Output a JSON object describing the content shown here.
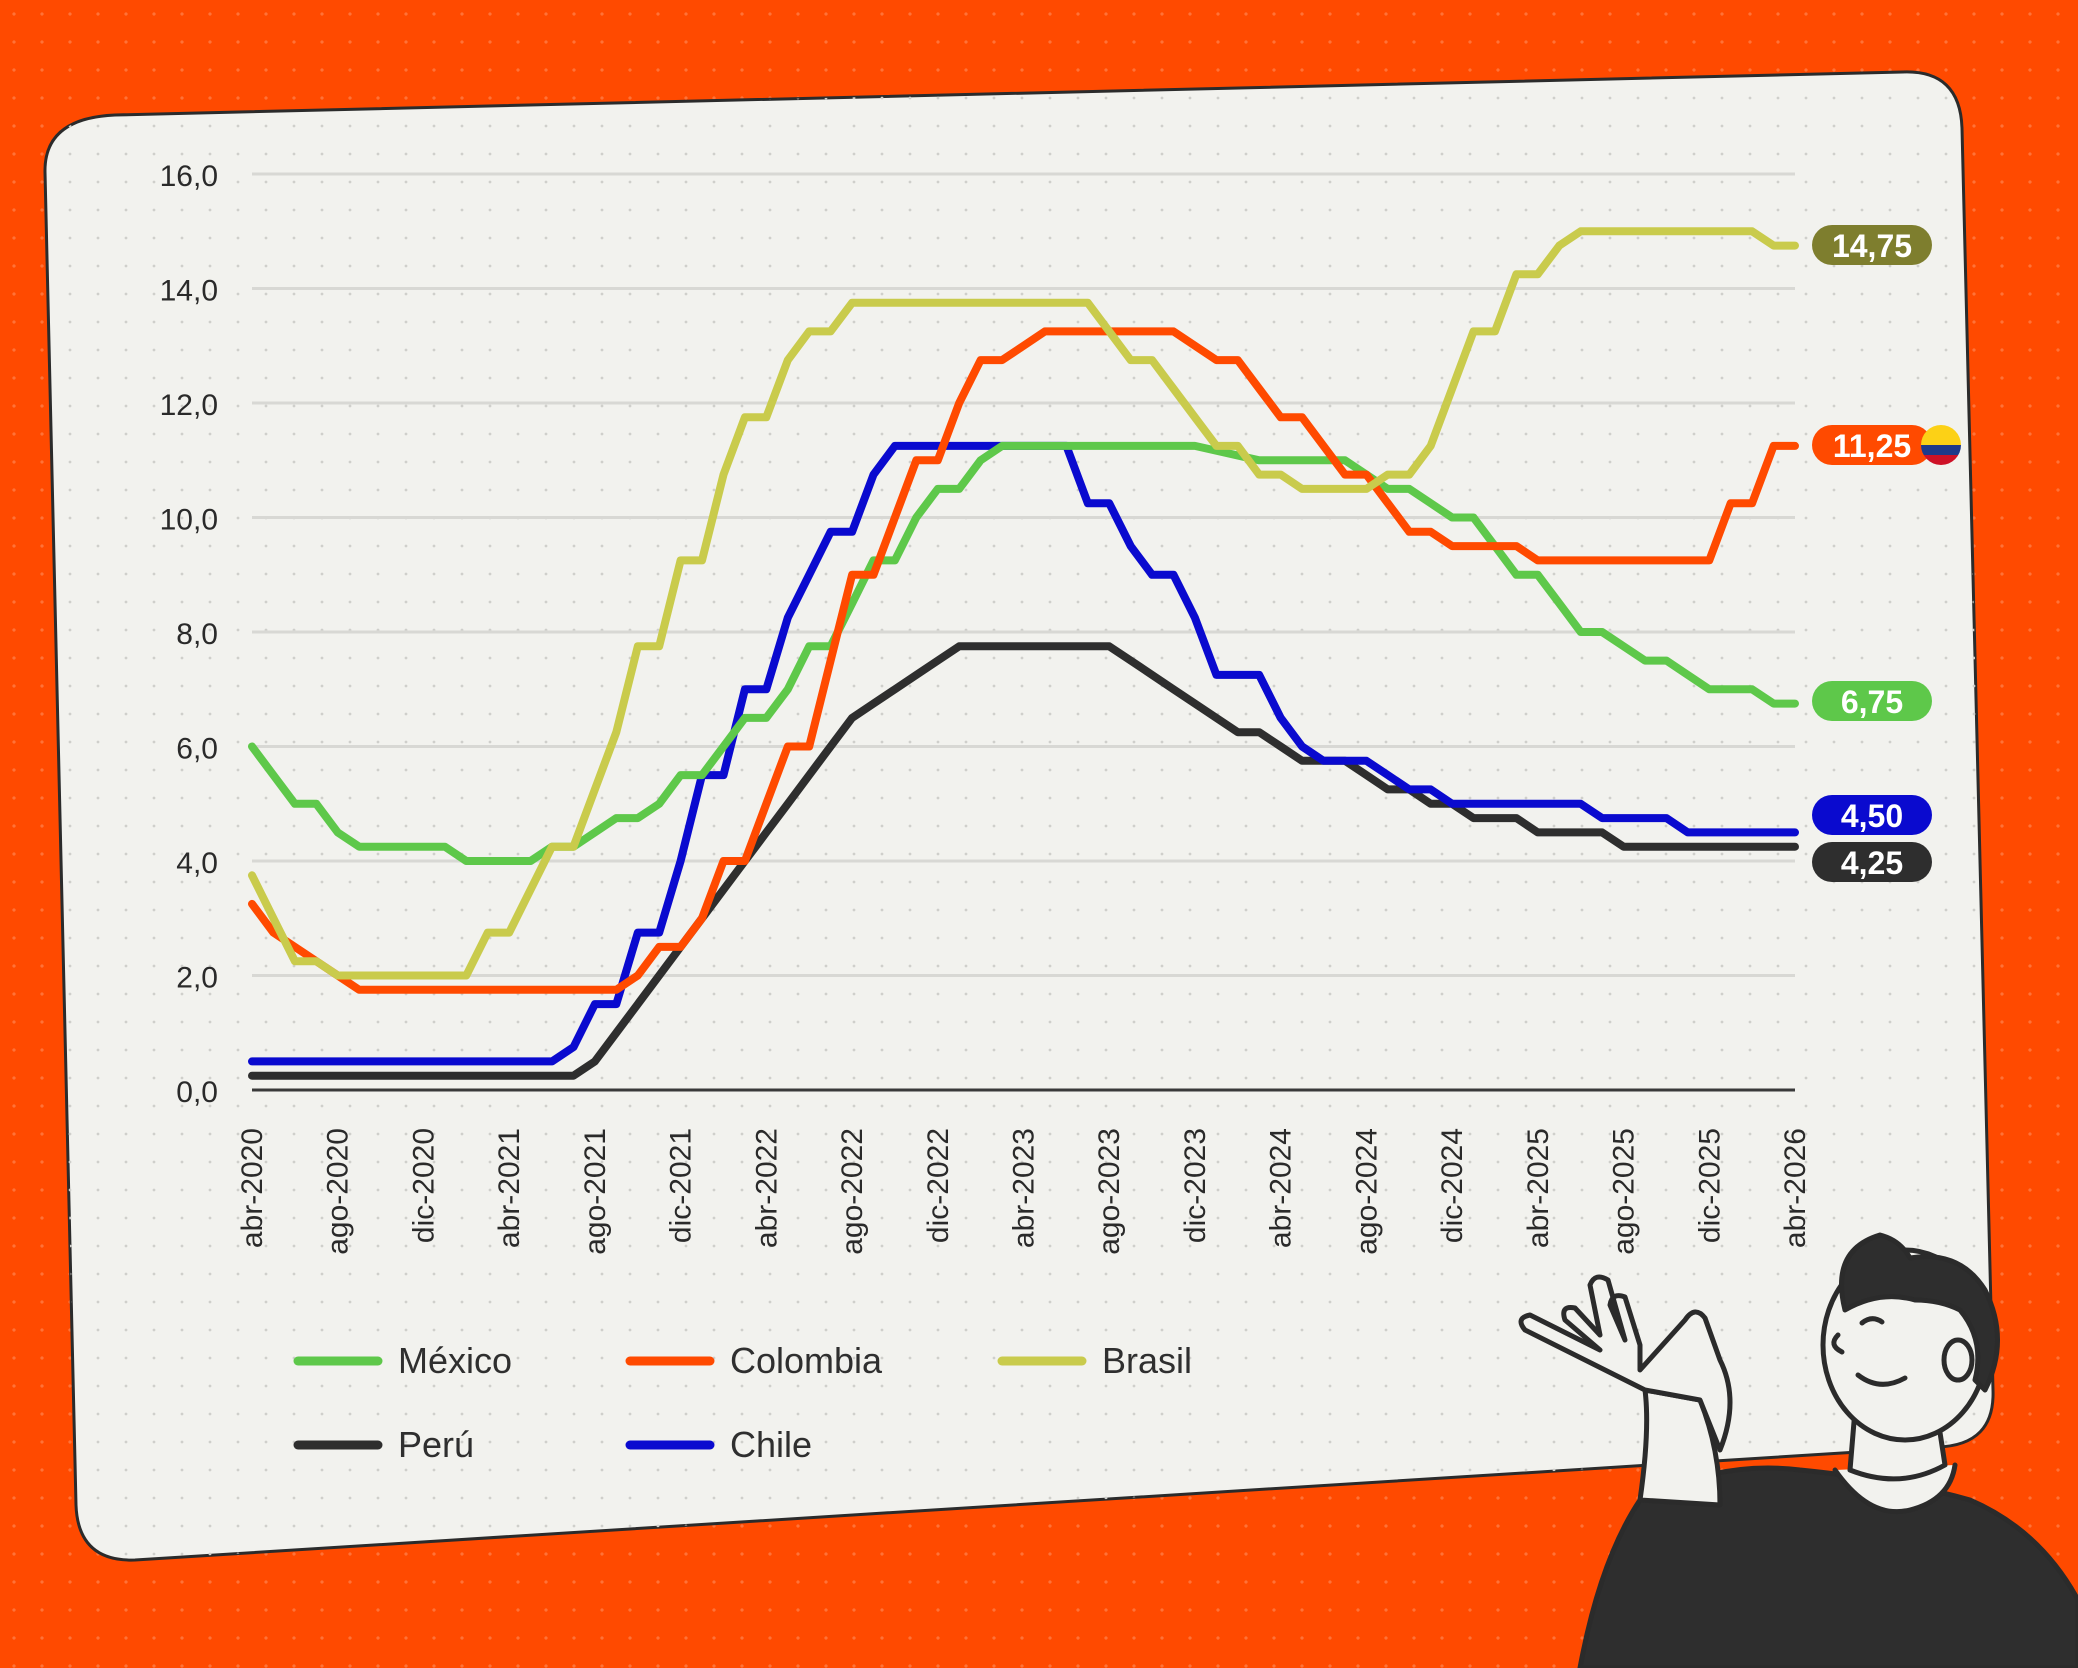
{
  "colors": {
    "background": "#FF4A00",
    "card": "#F2F2EE",
    "grid": "#D8D8D4",
    "label_brasil": "#7E7E2E",
    "label_colombia": "#FF4A00",
    "label_mexico": "#5EC84A",
    "label_chile": "#0A0ACF",
    "label_peru": "#2E2E2E"
  },
  "chart_data": {
    "type": "line",
    "y_ticks": [
      "16,0",
      "14,0",
      "12,0",
      "10,0",
      "8,0",
      "6,0",
      "4,0",
      "2,0",
      "0,0"
    ],
    "ylim": [
      0,
      16
    ],
    "xlim": [
      "2020-04",
      "2026-04"
    ],
    "x_ticks": [
      "abr-2020",
      "ago-2020",
      "dic-2020",
      "abr-2021",
      "ago-2021",
      "dic-2021",
      "abr-2022",
      "ago-2022",
      "dic-2022",
      "abr-2023",
      "ago-2023",
      "dic-2023",
      "abr-2024",
      "ago-2024",
      "dic-2024",
      "abr-2025",
      "ago-2025",
      "dic-2025",
      "abr-2026"
    ],
    "grid": true,
    "legend_position": "bottom-left",
    "series": [
      {
        "name": "México",
        "color": "#5EC84A",
        "end_label": "6,75",
        "points": [
          [
            "2020-04",
            6.0
          ],
          [
            "2020-05",
            5.5
          ],
          [
            "2020-06",
            5.0
          ],
          [
            "2020-07",
            5.0
          ],
          [
            "2020-08",
            4.5
          ],
          [
            "2020-09",
            4.25
          ],
          [
            "2020-10",
            4.25
          ],
          [
            "2020-11",
            4.25
          ],
          [
            "2020-12",
            4.25
          ],
          [
            "2021-01",
            4.25
          ],
          [
            "2021-02",
            4.0
          ],
          [
            "2021-03",
            4.0
          ],
          [
            "2021-04",
            4.0
          ],
          [
            "2021-05",
            4.0
          ],
          [
            "2021-06",
            4.25
          ],
          [
            "2021-07",
            4.25
          ],
          [
            "2021-08",
            4.5
          ],
          [
            "2021-09",
            4.75
          ],
          [
            "2021-10",
            4.75
          ],
          [
            "2021-11",
            5.0
          ],
          [
            "2021-12",
            5.5
          ],
          [
            "2022-01",
            5.5
          ],
          [
            "2022-02",
            6.0
          ],
          [
            "2022-03",
            6.5
          ],
          [
            "2022-04",
            6.5
          ],
          [
            "2022-05",
            7.0
          ],
          [
            "2022-06",
            7.75
          ],
          [
            "2022-07",
            7.75
          ],
          [
            "2022-08",
            8.5
          ],
          [
            "2022-09",
            9.25
          ],
          [
            "2022-10",
            9.25
          ],
          [
            "2022-11",
            10.0
          ],
          [
            "2022-12",
            10.5
          ],
          [
            "2023-01",
            10.5
          ],
          [
            "2023-02",
            11.0
          ],
          [
            "2023-03",
            11.25
          ],
          [
            "2023-06",
            11.25
          ],
          [
            "2023-12",
            11.25
          ],
          [
            "2024-03",
            11.0
          ],
          [
            "2024-06",
            11.0
          ],
          [
            "2024-07",
            11.0
          ],
          [
            "2024-08",
            10.75
          ],
          [
            "2024-09",
            10.5
          ],
          [
            "2024-10",
            10.5
          ],
          [
            "2024-11",
            10.25
          ],
          [
            "2024-12",
            10.0
          ],
          [
            "2025-01",
            10.0
          ],
          [
            "2025-02",
            9.5
          ],
          [
            "2025-03",
            9.0
          ],
          [
            "2025-04",
            9.0
          ],
          [
            "2025-05",
            8.5
          ],
          [
            "2025-06",
            8.0
          ],
          [
            "2025-07",
            8.0
          ],
          [
            "2025-08",
            7.75
          ],
          [
            "2025-09",
            7.5
          ],
          [
            "2025-10",
            7.5
          ],
          [
            "2025-11",
            7.25
          ],
          [
            "2025-12",
            7.0
          ],
          [
            "2026-01",
            7.0
          ],
          [
            "2026-02",
            7.0
          ],
          [
            "2026-03",
            6.75
          ],
          [
            "2026-04",
            6.75
          ]
        ]
      },
      {
        "name": "Colombia",
        "color": "#FF4A00",
        "end_label": "11,25",
        "points": [
          [
            "2020-04",
            3.25
          ],
          [
            "2020-05",
            2.75
          ],
          [
            "2020-06",
            2.5
          ],
          [
            "2020-07",
            2.25
          ],
          [
            "2020-08",
            2.0
          ],
          [
            "2020-09",
            1.75
          ],
          [
            "2021-08",
            1.75
          ],
          [
            "2021-09",
            1.75
          ],
          [
            "2021-10",
            2.0
          ],
          [
            "2021-11",
            2.5
          ],
          [
            "2021-12",
            2.5
          ],
          [
            "2022-01",
            3.0
          ],
          [
            "2022-02",
            4.0
          ],
          [
            "2022-03",
            4.0
          ],
          [
            "2022-04",
            5.0
          ],
          [
            "2022-05",
            6.0
          ],
          [
            "2022-06",
            6.0
          ],
          [
            "2022-07",
            7.5
          ],
          [
            "2022-08",
            9.0
          ],
          [
            "2022-09",
            9.0
          ],
          [
            "2022-10",
            10.0
          ],
          [
            "2022-11",
            11.0
          ],
          [
            "2022-12",
            11.0
          ],
          [
            "2023-01",
            12.0
          ],
          [
            "2023-02",
            12.75
          ],
          [
            "2023-03",
            12.75
          ],
          [
            "2023-04",
            13.0
          ],
          [
            "2023-05",
            13.25
          ],
          [
            "2023-11",
            13.25
          ],
          [
            "2024-01",
            12.75
          ],
          [
            "2024-02",
            12.75
          ],
          [
            "2024-03",
            12.25
          ],
          [
            "2024-04",
            11.75
          ],
          [
            "2024-05",
            11.75
          ],
          [
            "2024-06",
            11.25
          ],
          [
            "2024-07",
            10.75
          ],
          [
            "2024-08",
            10.75
          ],
          [
            "2024-09",
            10.25
          ],
          [
            "2024-10",
            9.75
          ],
          [
            "2024-11",
            9.75
          ],
          [
            "2024-12",
            9.5
          ],
          [
            "2025-03",
            9.5
          ],
          [
            "2025-04",
            9.25
          ],
          [
            "2025-12",
            9.25
          ],
          [
            "2026-01",
            10.25
          ],
          [
            "2026-02",
            10.25
          ],
          [
            "2026-03",
            11.25
          ],
          [
            "2026-04",
            11.25
          ]
        ]
      },
      {
        "name": "Brasil",
        "color": "#C9CB4C",
        "end_label": "14,75",
        "points": [
          [
            "2020-04",
            3.75
          ],
          [
            "2020-05",
            3.0
          ],
          [
            "2020-06",
            2.25
          ],
          [
            "2020-07",
            2.25
          ],
          [
            "2020-08",
            2.0
          ],
          [
            "2021-02",
            2.0
          ],
          [
            "2021-03",
            2.75
          ],
          [
            "2021-04",
            2.75
          ],
          [
            "2021-05",
            3.5
          ],
          [
            "2021-06",
            4.25
          ],
          [
            "2021-07",
            4.25
          ],
          [
            "2021-08",
            5.25
          ],
          [
            "2021-09",
            6.25
          ],
          [
            "2021-10",
            7.75
          ],
          [
            "2021-11",
            7.75
          ],
          [
            "2021-12",
            9.25
          ],
          [
            "2022-01",
            9.25
          ],
          [
            "2022-02",
            10.75
          ],
          [
            "2022-03",
            11.75
          ],
          [
            "2022-04",
            11.75
          ],
          [
            "2022-05",
            12.75
          ],
          [
            "2022-06",
            13.25
          ],
          [
            "2022-07",
            13.25
          ],
          [
            "2022-08",
            13.75
          ],
          [
            "2023-07",
            13.75
          ],
          [
            "2023-08",
            13.25
          ],
          [
            "2023-09",
            12.75
          ],
          [
            "2023-10",
            12.75
          ],
          [
            "2023-11",
            12.25
          ],
          [
            "2023-12",
            11.75
          ],
          [
            "2024-01",
            11.25
          ],
          [
            "2024-02",
            11.25
          ],
          [
            "2024-03",
            10.75
          ],
          [
            "2024-04",
            10.75
          ],
          [
            "2024-05",
            10.5
          ],
          [
            "2024-08",
            10.5
          ],
          [
            "2024-09",
            10.75
          ],
          [
            "2024-10",
            10.75
          ],
          [
            "2024-11",
            11.25
          ],
          [
            "2024-12",
            12.25
          ],
          [
            "2025-01",
            13.25
          ],
          [
            "2025-02",
            13.25
          ],
          [
            "2025-03",
            14.25
          ],
          [
            "2025-04",
            14.25
          ],
          [
            "2025-05",
            14.75
          ],
          [
            "2025-06",
            15.0
          ],
          [
            "2026-02",
            15.0
          ],
          [
            "2026-03",
            14.75
          ],
          [
            "2026-04",
            14.75
          ]
        ]
      },
      {
        "name": "Perú",
        "color": "#2E2E2E",
        "end_label": "4,25",
        "points": [
          [
            "2020-04",
            0.25
          ],
          [
            "2021-07",
            0.25
          ],
          [
            "2021-08",
            0.5
          ],
          [
            "2021-09",
            1.0
          ],
          [
            "2021-10",
            1.5
          ],
          [
            "2021-11",
            2.0
          ],
          [
            "2021-12",
            2.5
          ],
          [
            "2022-01",
            3.0
          ],
          [
            "2022-02",
            3.5
          ],
          [
            "2022-03",
            4.0
          ],
          [
            "2022-04",
            4.5
          ],
          [
            "2022-05",
            5.0
          ],
          [
            "2022-06",
            5.5
          ],
          [
            "2022-07",
            6.0
          ],
          [
            "2022-08",
            6.5
          ],
          [
            "2022-09",
            6.75
          ],
          [
            "2022-10",
            7.0
          ],
          [
            "2022-11",
            7.25
          ],
          [
            "2022-12",
            7.5
          ],
          [
            "2023-01",
            7.75
          ],
          [
            "2023-08",
            7.75
          ],
          [
            "2023-09",
            7.5
          ],
          [
            "2023-10",
            7.25
          ],
          [
            "2023-11",
            7.0
          ],
          [
            "2023-12",
            6.75
          ],
          [
            "2024-01",
            6.5
          ],
          [
            "2024-02",
            6.25
          ],
          [
            "2024-03",
            6.25
          ],
          [
            "2024-04",
            6.0
          ],
          [
            "2024-05",
            5.75
          ],
          [
            "2024-07",
            5.75
          ],
          [
            "2024-08",
            5.5
          ],
          [
            "2024-09",
            5.25
          ],
          [
            "2024-10",
            5.25
          ],
          [
            "2024-11",
            5.0
          ],
          [
            "2024-12",
            5.0
          ],
          [
            "2025-01",
            4.75
          ],
          [
            "2025-03",
            4.75
          ],
          [
            "2025-04",
            4.5
          ],
          [
            "2025-07",
            4.5
          ],
          [
            "2025-08",
            4.25
          ],
          [
            "2026-04",
            4.25
          ]
        ]
      },
      {
        "name": "Chile",
        "color": "#0A0ACF",
        "end_label": "4,50",
        "points": [
          [
            "2020-04",
            0.5
          ],
          [
            "2021-06",
            0.5
          ],
          [
            "2021-07",
            0.75
          ],
          [
            "2021-08",
            1.5
          ],
          [
            "2021-09",
            1.5
          ],
          [
            "2021-10",
            2.75
          ],
          [
            "2021-11",
            2.75
          ],
          [
            "2021-12",
            4.0
          ],
          [
            "2022-01",
            5.5
          ],
          [
            "2022-02",
            5.5
          ],
          [
            "2022-03",
            7.0
          ],
          [
            "2022-04",
            7.0
          ],
          [
            "2022-05",
            8.25
          ],
          [
            "2022-06",
            9.0
          ],
          [
            "2022-07",
            9.75
          ],
          [
            "2022-08",
            9.75
          ],
          [
            "2022-09",
            10.75
          ],
          [
            "2022-10",
            11.25
          ],
          [
            "2023-06",
            11.25
          ],
          [
            "2023-07",
            10.25
          ],
          [
            "2023-08",
            10.25
          ],
          [
            "2023-09",
            9.5
          ],
          [
            "2023-10",
            9.0
          ],
          [
            "2023-11",
            9.0
          ],
          [
            "2023-12",
            8.25
          ],
          [
            "2024-01",
            7.25
          ],
          [
            "2024-03",
            7.25
          ],
          [
            "2024-04",
            6.5
          ],
          [
            "2024-05",
            6.0
          ],
          [
            "2024-06",
            5.75
          ],
          [
            "2024-08",
            5.75
          ],
          [
            "2024-09",
            5.5
          ],
          [
            "2024-10",
            5.25
          ],
          [
            "2024-11",
            5.25
          ],
          [
            "2024-12",
            5.0
          ],
          [
            "2025-06",
            5.0
          ],
          [
            "2025-07",
            4.75
          ],
          [
            "2025-10",
            4.75
          ],
          [
            "2025-11",
            4.5
          ],
          [
            "2026-04",
            4.5
          ]
        ]
      }
    ]
  },
  "legend": {
    "mexico": "México",
    "colombia": "Colombia",
    "brasil": "Brasil",
    "peru": "Perú",
    "chile": "Chile"
  },
  "end_labels": {
    "brasil": "14,75",
    "colombia": "11,25",
    "mexico": "6,75",
    "chile": "4,50",
    "peru": "4,25"
  },
  "icons": {
    "flag": "colombia-flag-icon",
    "illustration": "person-pointing-illustration"
  }
}
